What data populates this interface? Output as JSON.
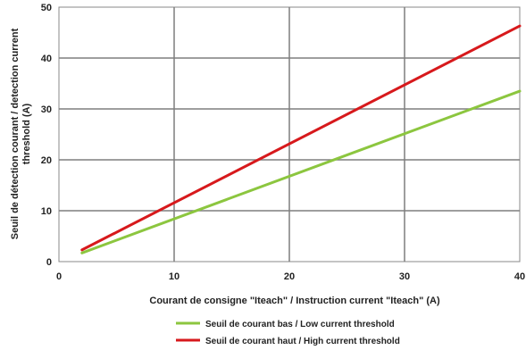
{
  "chart_data": {
    "type": "line",
    "xlabel": "Courant de consigne \"Iteach\" / Instruction current \"Iteach\" (A)",
    "ylabel": [
      "Seuil de détection courant / detection current",
      "threshold (A)"
    ],
    "xlim": [
      0,
      40
    ],
    "ylim": [
      0,
      50
    ],
    "x_ticks": [
      "0",
      "10",
      "20",
      "30",
      "40"
    ],
    "y_ticks": [
      "0",
      "10",
      "20",
      "30",
      "40",
      "50"
    ],
    "grid": true,
    "legend_position": "bottom",
    "series": [
      {
        "name": "Seuil de courant bas / Low current threshold",
        "color": "#8cc63f",
        "x": [
          2,
          40
        ],
        "y": [
          1.7,
          33.5
        ]
      },
      {
        "name": "Seuil de courant haut / High current threshold",
        "color": "#d7191c",
        "x": [
          2,
          40
        ],
        "y": [
          2.3,
          46.3
        ]
      }
    ]
  }
}
